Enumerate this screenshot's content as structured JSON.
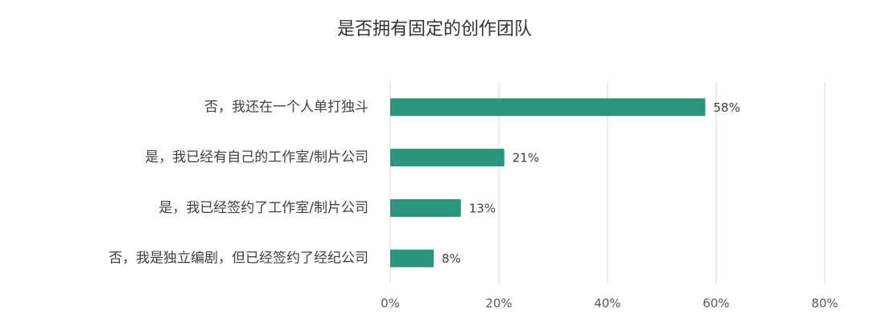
{
  "chart_data": {
    "type": "hbar",
    "title": "是否拥有固定的创作团队",
    "categories": [
      "否，我还在一个人单打独斗",
      "是，我已经有自己的工作室/制片公司",
      "是，我已经签约了工作室/制片公司",
      "否，我是独立编剧，但已经签约了经纪公司"
    ],
    "values": [
      58,
      21,
      13,
      8
    ],
    "value_labels": [
      "58%",
      "21%",
      "13%",
      "8%"
    ],
    "color": "#2a957a",
    "xlim": [
      0,
      80
    ],
    "xticks": [
      {
        "value": 0,
        "label": "0%"
      },
      {
        "value": 20,
        "label": "20%"
      },
      {
        "value": 40,
        "label": "40%"
      },
      {
        "value": 60,
        "label": "60%"
      },
      {
        "value": 80,
        "label": "80%"
      }
    ],
    "grid": true
  }
}
